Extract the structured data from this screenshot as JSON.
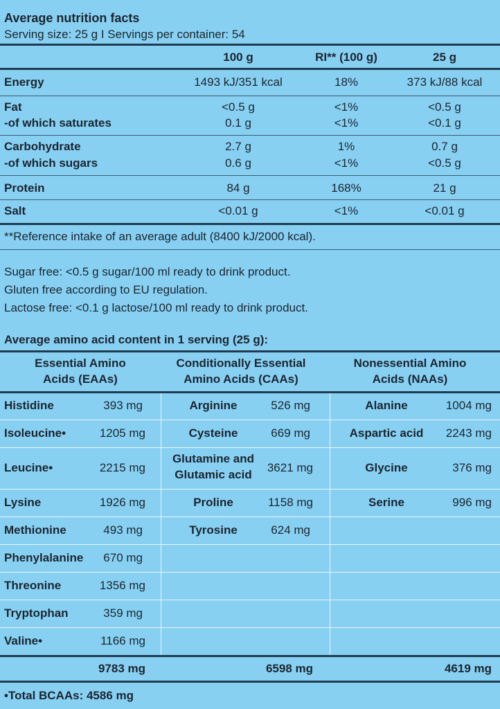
{
  "nutrition": {
    "title": "Average nutrition facts",
    "serving": "Serving size: 25 g I Servings per container: 54",
    "columns": [
      "100 g",
      "RI** (100 g)",
      "25 g"
    ],
    "rows": [
      {
        "label": "Energy",
        "v100": "1493 kJ/351 kcal",
        "ri": "18%",
        "v25": "373 kJ/88 kcal"
      },
      {
        "label": "Fat",
        "v100": "<0.5 g",
        "ri": "<1%",
        "v25": "<0.5 g"
      },
      {
        "label": "-of which saturates",
        "v100": "0.1 g",
        "ri": "<1%",
        "v25": "<0.1 g"
      },
      {
        "label": "Carbohydrate",
        "v100": "2.7 g",
        "ri": "1%",
        "v25": "0.7 g"
      },
      {
        "label": "-of which sugars",
        "v100": "0.6 g",
        "ri": "<1%",
        "v25": "<0.5 g"
      },
      {
        "label": "Protein",
        "v100": "84 g",
        "ri": "168%",
        "v25": "21 g"
      },
      {
        "label": "Salt",
        "v100": "<0.01 g",
        "ri": "<1%",
        "v25": "<0.01 g"
      }
    ],
    "footnote": "**Reference intake of an average adult (8400 kJ/2000 kcal)."
  },
  "notes": [
    "Sugar free: <0.5 g sugar/100 ml ready to drink product.",
    "Gluten free according to EU regulation.",
    "Lactose free: <0.1 g lactose/100 ml ready to drink product."
  ],
  "amino": {
    "title": "Average amino acid content in 1 serving (25 g):",
    "headers": {
      "eaa": [
        "Essential Amino",
        "Acids (EAAs)"
      ],
      "caa": [
        "Conditionally Essential",
        "Amino Acids (CAAs)"
      ],
      "naa": [
        "Nonessential Amino",
        "Acids (NAAs)"
      ]
    },
    "eaa": [
      {
        "name": "Histidine",
        "value": "393 mg"
      },
      {
        "name": "Isoleucine•",
        "value": "1205 mg"
      },
      {
        "name": "Leucine•",
        "value": "2215 mg"
      },
      {
        "name": "Lysine",
        "value": "1926 mg"
      },
      {
        "name": "Methionine",
        "value": "493 mg"
      },
      {
        "name": "Phenylalanine",
        "value": "670 mg"
      },
      {
        "name": "Threonine",
        "value": "1356 mg"
      },
      {
        "name": "Tryptophan",
        "value": "359 mg"
      },
      {
        "name": "Valine•",
        "value": "1166 mg"
      }
    ],
    "caa": [
      {
        "name": "Arginine",
        "value": "526 mg"
      },
      {
        "name": "Cysteine",
        "value": "669 mg"
      },
      {
        "name": "Glutamine and",
        "name2": "Glutamic acid",
        "value": "3621 mg"
      },
      {
        "name": "Proline",
        "value": "1158 mg"
      },
      {
        "name": "Tyrosine",
        "value": "624 mg"
      }
    ],
    "naa": [
      {
        "name": "Alanine",
        "value": "1004 mg"
      },
      {
        "name": "Aspartic acid",
        "value": "2243 mg"
      },
      {
        "name": "Glycine",
        "value": "376 mg"
      },
      {
        "name": "Serine",
        "value": "996 mg"
      }
    ],
    "totals": {
      "eaa": "9783 mg",
      "caa": "6598 mg",
      "naa": "4619 mg"
    },
    "bcaa": "•Total BCAAs: 4586 mg"
  }
}
